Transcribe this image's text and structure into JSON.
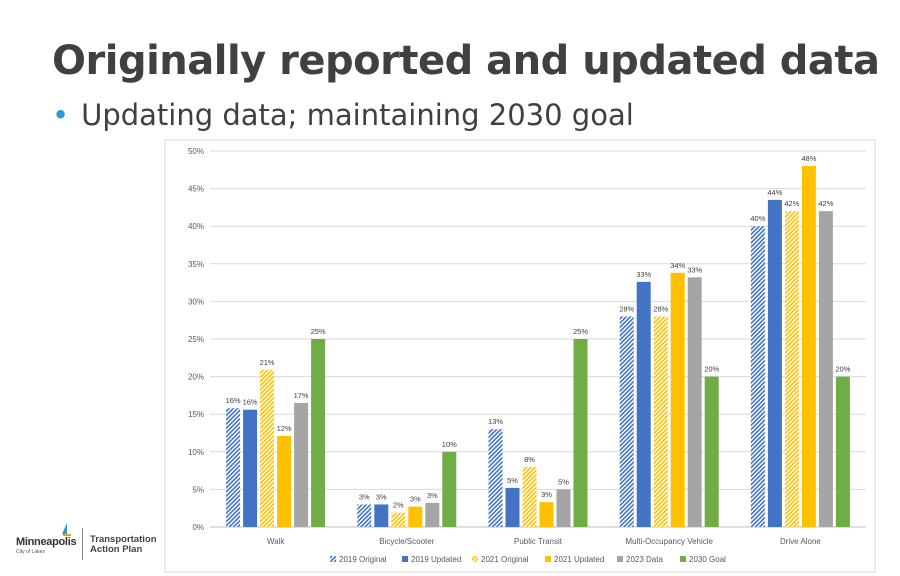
{
  "slide": {
    "title": "Originally reported and updated data",
    "bullet": "Updating data; maintaining 2030 goal"
  },
  "logo": {
    "city": "Minneapolis",
    "tagline": "City of Lakes",
    "plan_line1": "Transportation",
    "plan_line2": "Action Plan"
  },
  "chart_data": {
    "type": "bar",
    "title": "",
    "xlabel": "",
    "ylabel": "",
    "ylim": [
      0,
      50
    ],
    "yticks": [
      "0%",
      "5%",
      "10%",
      "15%",
      "20%",
      "25%",
      "30%",
      "35%",
      "40%",
      "45%",
      "50%"
    ],
    "grid": true,
    "legend_position": "bottom",
    "categories": [
      "Walk",
      "Bicycle/Scooter",
      "Public Transit",
      "Multi-Occupancy Vehicle",
      "Drive Alone"
    ],
    "series": [
      {
        "name": "2019 Original",
        "color": "#4472c4",
        "pattern": "hatched",
        "values": [
          15.8,
          3.0,
          13.0,
          28.0,
          40.0
        ],
        "labels": [
          "16%",
          "3%",
          "13%",
          "28%",
          "40%"
        ]
      },
      {
        "name": "2019 Updated",
        "color": "#4472c4",
        "pattern": "solid",
        "values": [
          15.6,
          3.0,
          5.2,
          32.6,
          43.5
        ],
        "labels": [
          "16%",
          "3%",
          "5%",
          "33%",
          "44%"
        ]
      },
      {
        "name": "2021 Original",
        "color": "#ffc000",
        "pattern": "hatched",
        "values": [
          20.9,
          1.9,
          8.0,
          28.0,
          42.0
        ],
        "labels": [
          "21%",
          "2%",
          "8%",
          "28%",
          "42%"
        ]
      },
      {
        "name": "2021 Updated",
        "color": "#ffc000",
        "pattern": "solid",
        "values": [
          12.1,
          2.7,
          3.3,
          33.8,
          48.0
        ],
        "labels": [
          "12%",
          "3%",
          "3%",
          "34%",
          "48%"
        ]
      },
      {
        "name": "2023 Data",
        "color": "#a5a5a5",
        "pattern": "solid",
        "values": [
          16.5,
          3.2,
          5.0,
          33.2,
          42.0
        ],
        "labels": [
          "17%",
          "3%",
          "5%",
          "33%",
          "42%"
        ]
      },
      {
        "name": "2030 Goal",
        "color": "#70ad47",
        "pattern": "solid",
        "values": [
          25,
          10,
          25,
          20,
          20
        ],
        "labels": [
          "25%",
          "10%",
          "25%",
          "20%",
          "20%"
        ]
      }
    ]
  }
}
